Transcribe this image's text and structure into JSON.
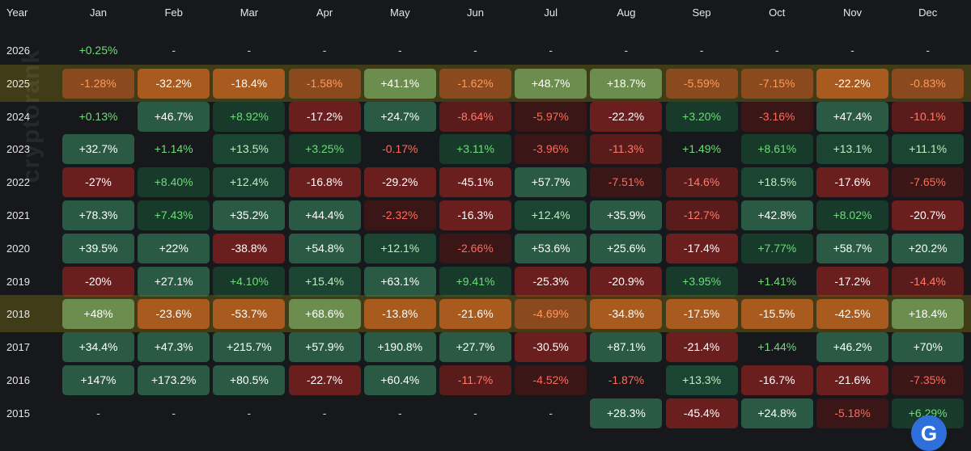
{
  "header": {
    "year_label": "Year",
    "months": [
      "Jan",
      "Feb",
      "Mar",
      "Apr",
      "May",
      "Jun",
      "Jul",
      "Aug",
      "Sep",
      "Oct",
      "Nov",
      "Dec"
    ]
  },
  "rows": [
    {
      "year": "2026",
      "highlighted": false,
      "values": [
        "+0.25%",
        "-",
        "-",
        "-",
        "-",
        "-",
        "-",
        "-",
        "-",
        "-",
        "-",
        "-"
      ]
    },
    {
      "year": "2025",
      "highlighted": true,
      "values": [
        "-1.28%",
        "-32.2%",
        "-18.4%",
        "-1.58%",
        "+41.1%",
        "-1.62%",
        "+48.7%",
        "+18.7%",
        "-5.59%",
        "-7.15%",
        "-22.2%",
        "-0.83%"
      ]
    },
    {
      "year": "2024",
      "highlighted": false,
      "values": [
        "+0.13%",
        "+46.7%",
        "+8.92%",
        "-17.2%",
        "+24.7%",
        "-8.64%",
        "-5.97%",
        "-22.2%",
        "+3.20%",
        "-3.16%",
        "+47.4%",
        "-10.1%"
      ]
    },
    {
      "year": "2023",
      "highlighted": false,
      "values": [
        "+32.7%",
        "+1.14%",
        "+13.5%",
        "+3.25%",
        "-0.17%",
        "+3.11%",
        "-3.96%",
        "-11.3%",
        "+1.49%",
        "+8.61%",
        "+13.1%",
        "+11.1%"
      ]
    },
    {
      "year": "2022",
      "highlighted": false,
      "values": [
        "-27%",
        "+8.40%",
        "+12.4%",
        "-16.8%",
        "-29.2%",
        "-45.1%",
        "+57.7%",
        "-7.51%",
        "-14.6%",
        "+18.5%",
        "-17.6%",
        "-7.65%"
      ]
    },
    {
      "year": "2021",
      "highlighted": false,
      "values": [
        "+78.3%",
        "+7.43%",
        "+35.2%",
        "+44.4%",
        "-2.32%",
        "-16.3%",
        "+12.4%",
        "+35.9%",
        "-12.7%",
        "+42.8%",
        "+8.02%",
        "-20.7%"
      ]
    },
    {
      "year": "2020",
      "highlighted": false,
      "values": [
        "+39.5%",
        "+22%",
        "-38.8%",
        "+54.8%",
        "+12.1%",
        "-2.66%",
        "+53.6%",
        "+25.6%",
        "-17.4%",
        "+7.77%",
        "+58.7%",
        "+20.2%"
      ]
    },
    {
      "year": "2019",
      "highlighted": false,
      "values": [
        "-20%",
        "+27.1%",
        "+4.10%",
        "+15.4%",
        "+63.1%",
        "+9.41%",
        "-25.3%",
        "-20.9%",
        "+3.95%",
        "+1.41%",
        "-17.2%",
        "-14.4%"
      ]
    },
    {
      "year": "2018",
      "highlighted": true,
      "values": [
        "+48%",
        "-23.6%",
        "-53.7%",
        "+68.6%",
        "-13.8%",
        "-21.6%",
        "-4.69%",
        "-34.8%",
        "-17.5%",
        "-15.5%",
        "-42.5%",
        "+18.4%"
      ]
    },
    {
      "year": "2017",
      "highlighted": false,
      "values": [
        "+34.4%",
        "+47.3%",
        "+215.7%",
        "+57.9%",
        "+190.8%",
        "+27.7%",
        "-30.5%",
        "+87.1%",
        "-21.4%",
        "+1.44%",
        "+46.2%",
        "+70%"
      ]
    },
    {
      "year": "2016",
      "highlighted": false,
      "values": [
        "+147%",
        "+173.2%",
        "+80.5%",
        "-22.7%",
        "+60.4%",
        "-11.7%",
        "-4.52%",
        "-1.87%",
        "+13.3%",
        "-16.7%",
        "-21.6%",
        "-7.35%"
      ]
    },
    {
      "year": "2015",
      "highlighted": false,
      "values": [
        "-",
        "-",
        "-",
        "-",
        "-",
        "-",
        "-",
        "+28.3%",
        "-45.4%",
        "+24.8%",
        "-5.18%",
        "+6.29%"
      ]
    }
  ],
  "watermark": "cryptorank",
  "badge_glyph": "G",
  "colors": {
    "background": "#17181c",
    "text_positive_light": "#6fdc7a",
    "text_negative_light": "#ff6b5b",
    "text_strong": "#ffffff"
  }
}
